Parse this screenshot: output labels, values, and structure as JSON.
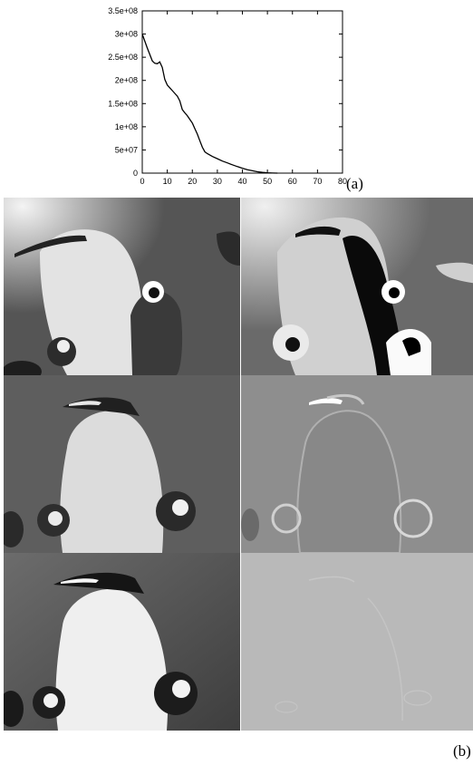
{
  "figure": {
    "panel_a_label": "(a)",
    "panel_b_label": "(b)"
  },
  "chart_data": {
    "type": "line",
    "x": [
      0,
      2,
      4,
      5,
      6,
      7,
      8,
      9,
      10,
      11,
      12,
      13,
      14,
      15,
      16,
      17,
      18,
      19,
      20,
      21,
      22,
      23,
      24,
      25,
      26,
      28,
      30,
      32,
      34,
      36,
      38,
      40,
      42,
      44,
      46,
      48,
      50,
      52,
      54
    ],
    "series": [
      {
        "values": [
          300000000,
          270000000,
          242000000,
          237000000,
          236000000,
          240000000,
          228000000,
          202000000,
          190000000,
          184000000,
          178000000,
          172000000,
          166000000,
          156000000,
          137000000,
          130000000,
          124000000,
          116000000,
          108000000,
          96000000,
          84000000,
          70000000,
          56000000,
          46000000,
          42000000,
          36000000,
          31000000,
          26000000,
          22000000,
          18000000,
          14000000,
          10500000,
          7500000,
          5000000,
          3000000,
          1500000,
          500000,
          150000,
          0
        ]
      }
    ],
    "xlim": [
      0,
      80
    ],
    "ylim": [
      0,
      350000000
    ],
    "xticks": [
      "0",
      "10",
      "20",
      "30",
      "40",
      "50",
      "60",
      "70",
      "80"
    ],
    "yticks": [
      "0",
      "5e+07",
      "1e+08",
      "1.5e+08",
      "2e+08",
      "2.5e+08",
      "3e+08",
      "3.5e+08"
    ],
    "grid": false
  },
  "images": [
    {
      "content": "penguin-photo",
      "variant": "original"
    },
    {
      "content": "penguin-photo",
      "variant": "residual-high-contrast"
    },
    {
      "content": "penguin-photo",
      "variant": "reconstruction"
    },
    {
      "content": "penguin-photo",
      "variant": "residual-mid"
    },
    {
      "content": "penguin-photo",
      "variant": "reconstruction-final"
    },
    {
      "content": "penguin-photo",
      "variant": "residual-flat"
    }
  ]
}
